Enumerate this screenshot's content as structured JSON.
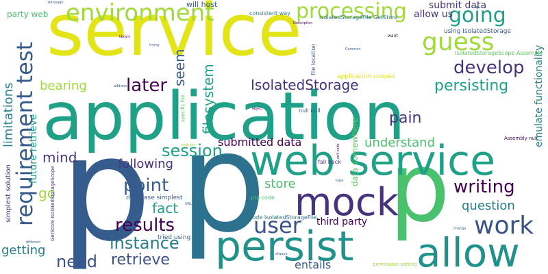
{
  "words": {
    "service": "service",
    "application": "application",
    "p1": "p",
    "p2": "p",
    "p3": "p",
    "web_service": "web service",
    "persist": "persist",
    "allow": "allow",
    "mock": "mock",
    "user": "user",
    "work": "work",
    "environment": "environment",
    "processing": "processing",
    "guess": "guess",
    "going": "going",
    "develop": "develop",
    "requirement_test": "requirement test",
    "later": "later",
    "IsolatedStorage": "IsolatedStorage",
    "persisting": "persisting",
    "session": "session",
    "point": "point",
    "writing": "writing",
    "results": "results",
    "instance": "instance",
    "need": "need",
    "retrieve": "retrieve",
    "filesystem": "filesystem",
    "seem": "seem",
    "pain": "pain",
    "understand": "understand",
    "submitted_data": "submitted data",
    "following": "following",
    "fact": "fact",
    "question": "question",
    "store": "store",
    "mind": "mind",
    "bearing": "bearing",
    "getting": "getting",
    "go": "go",
    "limitations": "limitations",
    "future_retrieve": "future retrieve",
    "entails": "entails",
    "third_party": "third party",
    "submit_data": "submit data",
    "allow_us": "allow us",
    "party_web": "party web",
    "will_host": "will host",
    "emulate_functionality": "emulate functionality",
    "data_somewhere": "data somewhere",
    "using_IsolatedStorage": "using IsolatedStorage",
    "IsolatedStorageFile_GetStore": "IsolatedStorageFile GetStore",
    "IsolatedStorageScope_Assembly": "IsolatedStorageScope Assembly",
    "application_scoped": "application scoped",
    "consistent_way": "consistent way",
    "simplest_solution": "simplest solution",
    "database_simplest": "database simplest",
    "code_IsolatedStorageFile": "code IsolatedStorageFile",
    "pre_code": "pre code",
    "tried_using": "tried using",
    "GetStore_IsolatedStorageScope": "GetStore IsolatedStorageScope",
    "file_location": "file location",
    "specific_file": "specific file",
    "null_null": "null null",
    "fall_back": "fall back",
    "Assembly_null": "Assembly null",
    "permission_setting": "permission setting",
    "want": "want",
    "Description": "Description",
    "Common": "Common",
    "object": "object",
    "library": "library",
    "trying": "trying",
    "type": "type",
    "different": "different",
    "change": "change",
    "always": "always",
    "address": "address",
    "Although": "Although",
    "code_pre": "code pre",
    "URL": "URL",
    "null_code": "null code"
  }
}
